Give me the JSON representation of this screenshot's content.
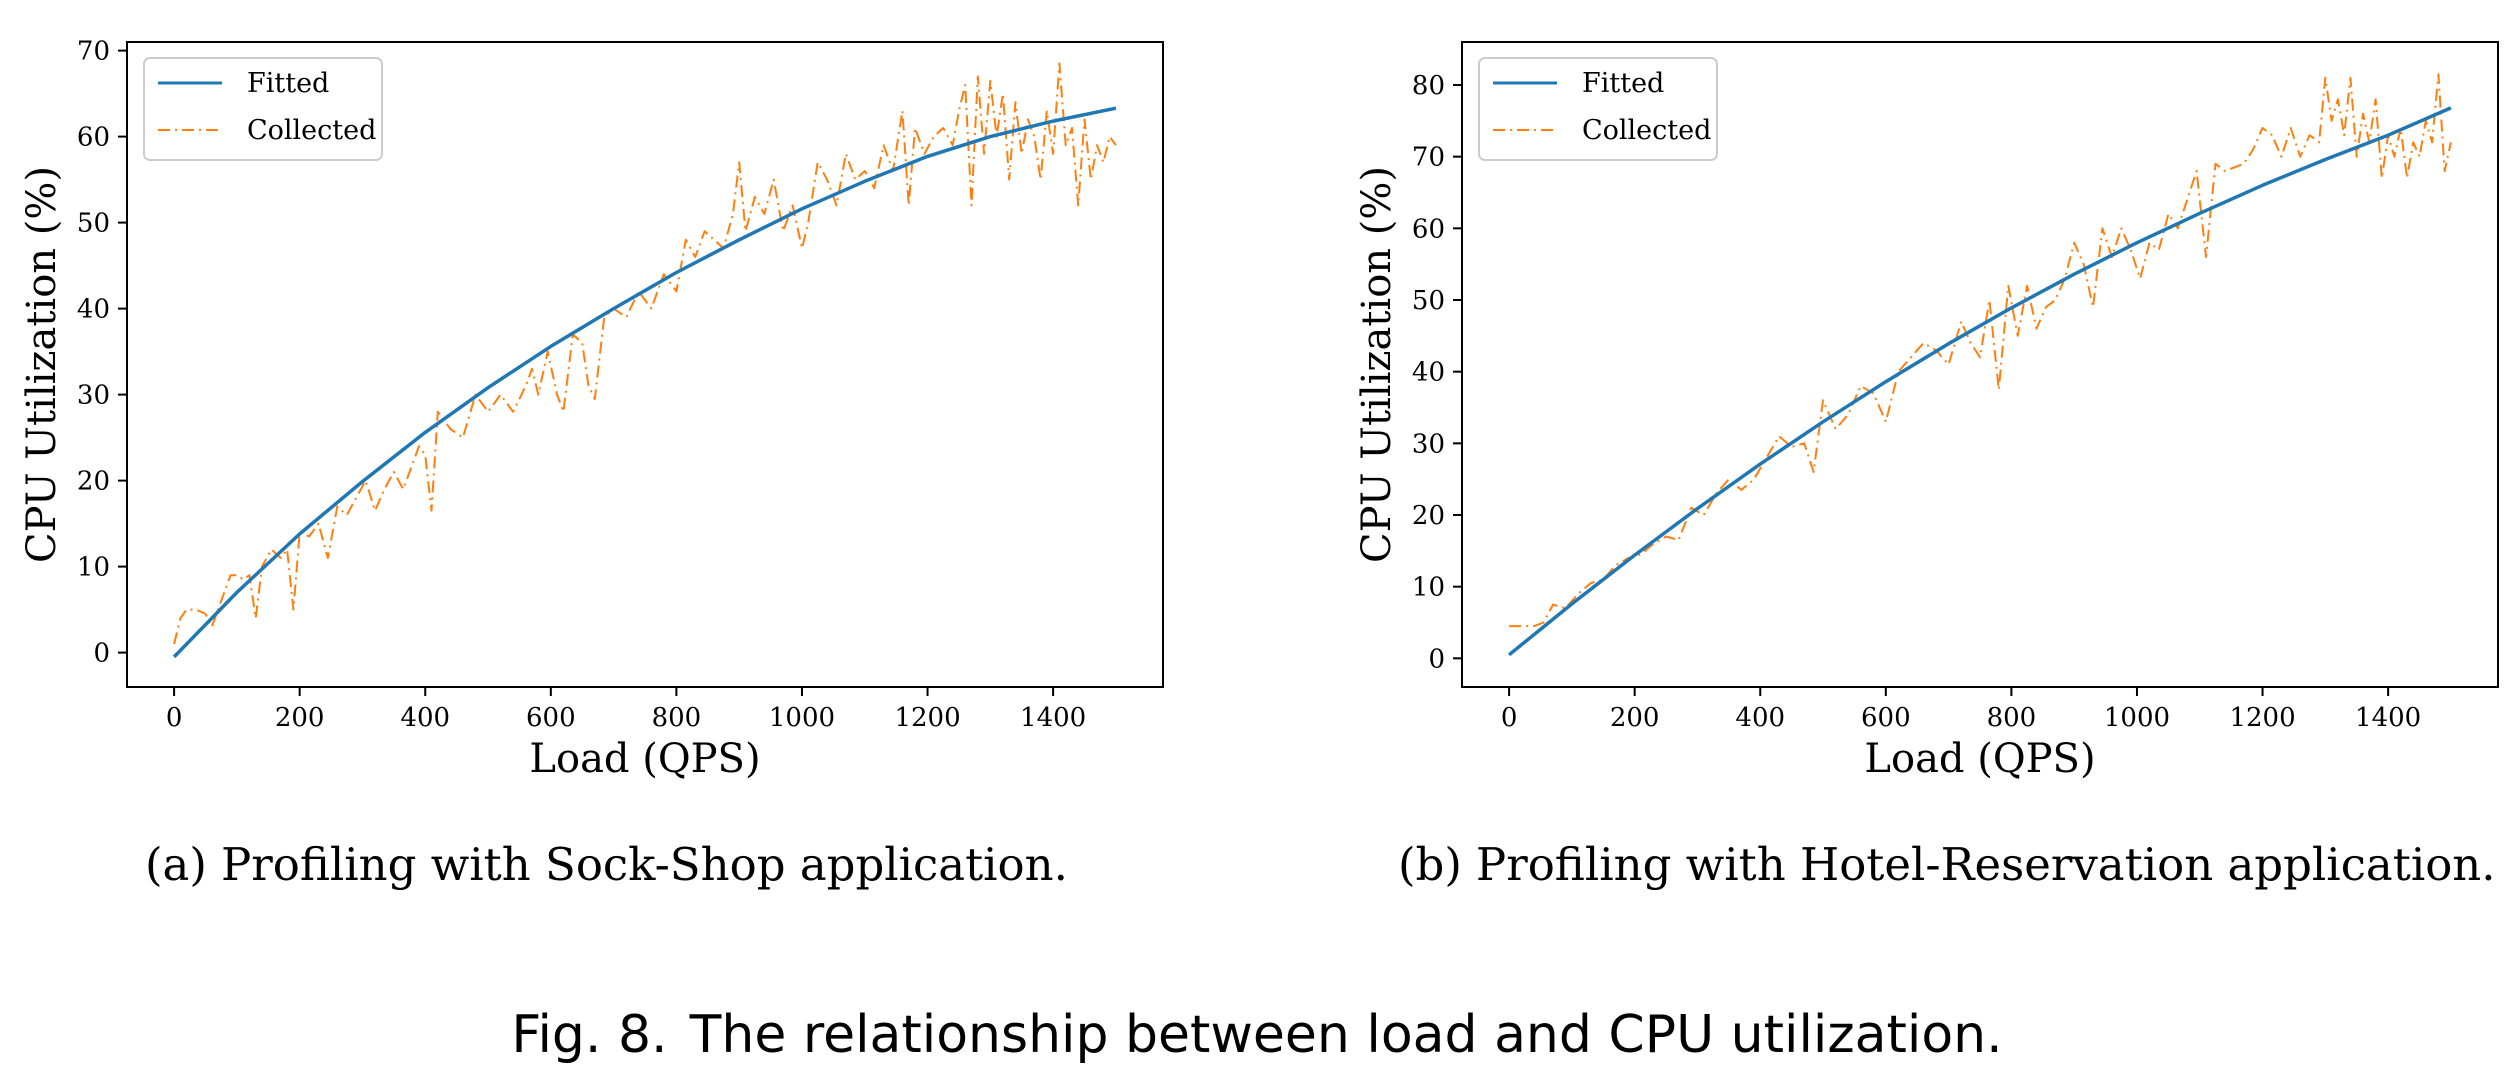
{
  "figure": {
    "caption_label": "Fig. 8.",
    "caption_text": "The relationship between load and CPU utilization."
  },
  "colors": {
    "fitted": "#1f77b4",
    "collected": "#ff7f0e"
  },
  "chart_data": [
    {
      "type": "line",
      "subcaption_label": "(a)",
      "subcaption_text": "Profiling with Sock-Shop application.",
      "xlabel": "Load (QPS)",
      "ylabel": "CPU Utilization (%)",
      "xlim": [
        -75,
        1575
      ],
      "ylim": [
        -4,
        71
      ],
      "xticks": [
        0,
        200,
        400,
        600,
        800,
        1000,
        1200,
        1400
      ],
      "yticks": [
        0,
        10,
        20,
        30,
        40,
        50,
        60,
        70
      ],
      "legend_position": "upper left",
      "grid": false,
      "series": [
        {
          "name": "Fitted",
          "style": "solid",
          "x": [
            0,
            100,
            200,
            300,
            400,
            500,
            600,
            700,
            800,
            900,
            1000,
            1100,
            1200,
            1300,
            1400,
            1500
          ],
          "y": [
            -0.5,
            7.0,
            13.8,
            19.9,
            25.6,
            30.8,
            35.6,
            40.0,
            44.2,
            48.0,
            51.6,
            54.8,
            57.7,
            60.0,
            61.8,
            63.3
          ]
        },
        {
          "name": "Collected",
          "style": "dashdot",
          "x": [
            0,
            10,
            20,
            35,
            50,
            60,
            75,
            90,
            100,
            110,
            120,
            130,
            140,
            155,
            170,
            180,
            190,
            200,
            215,
            230,
            245,
            260,
            275,
            290,
            305,
            320,
            335,
            350,
            365,
            380,
            390,
            400,
            410,
            420,
            440,
            460,
            480,
            500,
            520,
            540,
            560,
            570,
            580,
            595,
            610,
            620,
            635,
            650,
            660,
            670,
            685,
            700,
            720,
            740,
            760,
            780,
            800,
            815,
            830,
            845,
            860,
            875,
            890,
            900,
            910,
            925,
            940,
            955,
            970,
            985,
            1000,
            1010,
            1025,
            1040,
            1055,
            1070,
            1085,
            1100,
            1115,
            1130,
            1145,
            1160,
            1170,
            1180,
            1195,
            1210,
            1225,
            1240,
            1250,
            1260,
            1270,
            1280,
            1290,
            1300,
            1310,
            1320,
            1330,
            1340,
            1350,
            1360,
            1370,
            1380,
            1390,
            1400,
            1410,
            1420,
            1430,
            1440,
            1450,
            1460,
            1470,
            1480,
            1490,
            1500
          ],
          "y": [
            1.0,
            4.0,
            5.0,
            5.0,
            4.5,
            3.0,
            6.0,
            9.0,
            9.0,
            8.5,
            9.0,
            4.0,
            10.0,
            12.0,
            11.0,
            12.0,
            5.0,
            14.0,
            13.5,
            15.0,
            11.0,
            17.0,
            16.0,
            18.0,
            20.0,
            16.5,
            19.0,
            21.0,
            19.0,
            22.0,
            24.0,
            23.0,
            16.5,
            28.0,
            26.0,
            25.0,
            30.0,
            28.0,
            30.0,
            28.0,
            31.0,
            33.0,
            30.0,
            35.0,
            30.0,
            28.0,
            37.0,
            36.0,
            31.0,
            29.5,
            39.0,
            40.0,
            39.0,
            42.0,
            40.0,
            44.0,
            42.0,
            48.0,
            46.0,
            49.0,
            48.0,
            47.0,
            51.0,
            57.0,
            49.0,
            53.0,
            51.0,
            55.0,
            49.0,
            52.0,
            47.0,
            50.0,
            57.0,
            55.0,
            52.0,
            58.0,
            55.0,
            56.0,
            54.0,
            59.0,
            56.0,
            63.0,
            52.0,
            61.0,
            58.0,
            60.0,
            61.0,
            59.0,
            63.0,
            66.0,
            52.0,
            67.0,
            58.0,
            66.5,
            60.0,
            65.0,
            55.0,
            64.0,
            58.0,
            62.0,
            60.0,
            55.0,
            63.0,
            58.0,
            68.5,
            59.0,
            61.0,
            52.0,
            62.0,
            55.0,
            59.0,
            57.0,
            60.0,
            59.0
          ]
        }
      ]
    },
    {
      "type": "line",
      "subcaption_label": "(b)",
      "subcaption_text": "Profiling with Hotel-Reservation application.",
      "xlabel": "Load (QPS)",
      "ylabel": "CPU Utilization (%)",
      "xlim": [
        -75,
        1575
      ],
      "ylim": [
        -4,
        86
      ],
      "xticks": [
        0,
        200,
        400,
        600,
        800,
        1000,
        1200,
        1400
      ],
      "yticks": [
        0,
        10,
        20,
        30,
        40,
        50,
        60,
        70,
        80
      ],
      "legend_position": "upper left",
      "grid": false,
      "series": [
        {
          "name": "Fitted",
          "style": "solid",
          "x": [
            0,
            100,
            200,
            300,
            400,
            500,
            600,
            700,
            800,
            900,
            1000,
            1100,
            1200,
            1300,
            1400,
            1500
          ],
          "y": [
            0.5,
            7.6,
            14.4,
            20.9,
            27.1,
            33.0,
            38.6,
            43.9,
            48.9,
            53.6,
            58.0,
            62.1,
            66.0,
            69.6,
            73.0,
            76.8
          ]
        },
        {
          "name": "Collected",
          "style": "dashdot",
          "x": [
            0,
            20,
            40,
            55,
            70,
            90,
            110,
            130,
            150,
            170,
            190,
            210,
            230,
            250,
            270,
            290,
            310,
            330,
            350,
            370,
            390,
            410,
            430,
            450,
            470,
            485,
            500,
            520,
            540,
            560,
            580,
            600,
            620,
            640,
            660,
            680,
            700,
            720,
            735,
            750,
            765,
            780,
            795,
            810,
            825,
            840,
            855,
            870,
            885,
            900,
            915,
            930,
            945,
            960,
            975,
            990,
            1005,
            1020,
            1035,
            1050,
            1065,
            1080,
            1095,
            1110,
            1125,
            1140,
            1155,
            1170,
            1185,
            1200,
            1215,
            1230,
            1245,
            1260,
            1275,
            1290,
            1300,
            1310,
            1320,
            1330,
            1340,
            1350,
            1360,
            1370,
            1380,
            1390,
            1400,
            1410,
            1420,
            1430,
            1440,
            1450,
            1460,
            1470,
            1480,
            1490,
            1500
          ],
          "y": [
            4.5,
            4.5,
            4.5,
            5.0,
            7.5,
            7.0,
            9.0,
            10.5,
            11.0,
            13.0,
            14.0,
            14.5,
            16.0,
            17.0,
            16.5,
            21.0,
            20.0,
            23.0,
            25.0,
            23.5,
            25.0,
            28.0,
            31.0,
            29.5,
            30.0,
            26.0,
            36.0,
            32.0,
            34.0,
            38.0,
            37.0,
            33.0,
            40.0,
            42.0,
            44.0,
            43.0,
            41.0,
            47.0,
            44.0,
            42.0,
            50.0,
            37.5,
            52.0,
            45.0,
            52.0,
            46.0,
            49.0,
            50.0,
            53.0,
            58.0,
            55.0,
            49.0,
            60.0,
            56.0,
            60.0,
            57.0,
            53.0,
            58.0,
            57.0,
            62.0,
            60.0,
            64.0,
            68.0,
            56.0,
            69.0,
            68.0,
            68.5,
            69.0,
            71.0,
            74.0,
            73.0,
            70.0,
            74.0,
            70.0,
            73.0,
            72.0,
            81.0,
            75.0,
            78.0,
            73.0,
            81.0,
            70.0,
            76.0,
            72.0,
            78.0,
            67.0,
            73.0,
            70.0,
            74.0,
            67.0,
            72.0,
            70.0,
            75.0,
            72.0,
            81.5,
            68.0,
            72.0
          ]
        }
      ]
    }
  ]
}
